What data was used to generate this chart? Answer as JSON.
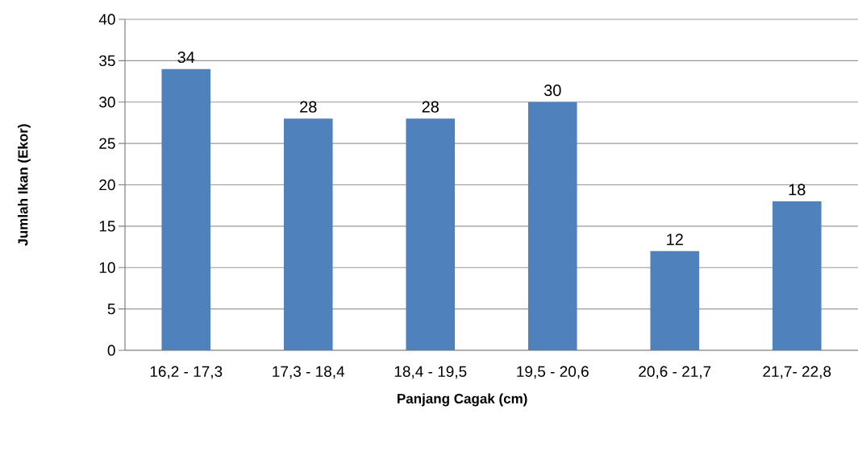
{
  "chart_data": {
    "type": "bar",
    "categories": [
      "16,2 - 17,3",
      "17,3 - 18,4",
      "18,4 - 19,5",
      "19,5 - 20,6",
      "20,6 - 21,7",
      "21,7- 22,8"
    ],
    "values": [
      34,
      28,
      28,
      30,
      12,
      18
    ],
    "color": "#4f81bd",
    "xlabel": "Panjang Cagak (cm)",
    "ylabel": "Jumlah Ikan (Ekor)",
    "ylim": [
      0,
      40
    ],
    "yticks": [
      0,
      5,
      10,
      15,
      20,
      25,
      30,
      35,
      40
    ],
    "grid": "y",
    "data_labels": true
  }
}
